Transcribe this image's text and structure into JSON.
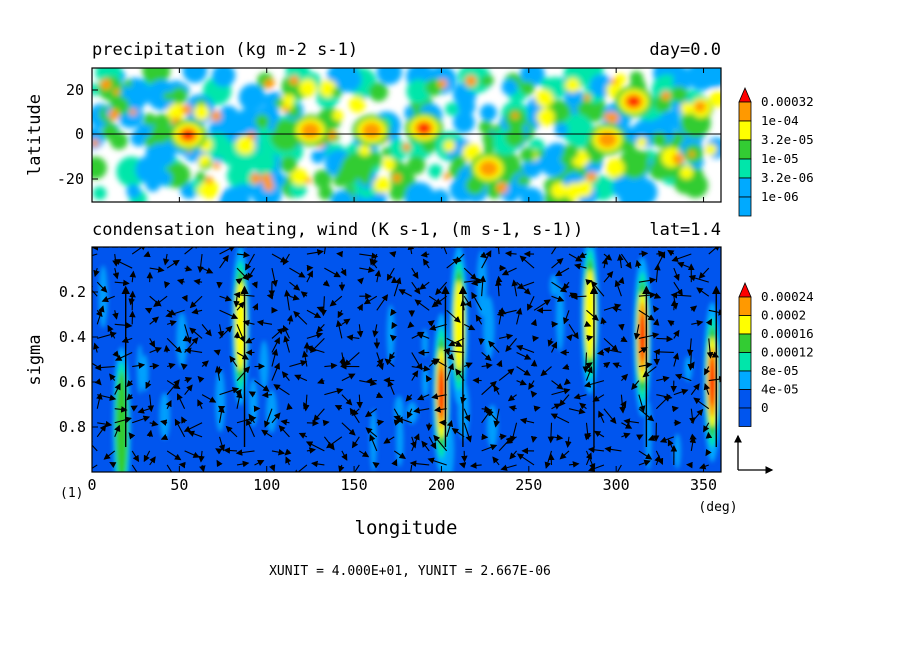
{
  "chart_data": [
    {
      "type": "heatmap",
      "title": "precipitation (kg m-2 s-1)",
      "time_label": "day=0.0",
      "xlabel": "",
      "ylabel": "latitude",
      "xlim": [
        0,
        360
      ],
      "ylim": [
        -30,
        30
      ],
      "x_ticks": [
        0,
        50,
        100,
        150,
        200,
        250,
        300,
        350
      ],
      "y_ticks": [
        "20",
        "0",
        "-20"
      ],
      "colorbar": {
        "levels": [
          "0.00032",
          "1e-04",
          "3.2e-05",
          "1e-05",
          "3.2e-06",
          "1e-06"
        ],
        "colors": [
          "#ff0000",
          "#ff9900",
          "#ffff00",
          "#33cc33",
          "#00e6aa",
          "#00aaff"
        ]
      },
      "reference_line": {
        "y": 0
      },
      "hotspots": [
        {
          "lon": 55,
          "lat": 0,
          "level": "0.00032"
        },
        {
          "lon": 125,
          "lat": 2,
          "level": "1e-04"
        },
        {
          "lon": 160,
          "lat": 2,
          "level": "1e-04"
        },
        {
          "lon": 190,
          "lat": 3,
          "level": "0.00032"
        },
        {
          "lon": 227,
          "lat": -15,
          "level": "1e-04"
        },
        {
          "lon": 295,
          "lat": -2,
          "level": "1e-04"
        },
        {
          "lon": 310,
          "lat": 15,
          "level": "0.00032"
        }
      ]
    },
    {
      "type": "heatmap",
      "title": "condensation heating, wind (K s-1, (m s-1, s-1))",
      "lat_label": "lat=1.4",
      "xlabel": "longitude",
      "x_unit": "(deg)",
      "ylabel": "sigma",
      "xlim": [
        0,
        360
      ],
      "ylim": [
        1.0,
        0.0
      ],
      "x_ticks": [
        "0",
        "50",
        "100",
        "150",
        "200",
        "250",
        "300",
        "350"
      ],
      "y_ticks": [
        "0.2",
        "0.4",
        "0.6",
        "0.8"
      ],
      "colorbar": {
        "levels": [
          "0.00024",
          "0.0002",
          "0.00016",
          "0.00012",
          "8e-05",
          "4e-05",
          "0"
        ],
        "colors": [
          "#ff0000",
          "#ff9900",
          "#ffff00",
          "#33cc33",
          "#00e6aa",
          "#00aaff",
          "#0055ee"
        ]
      },
      "heating_columns": [
        {
          "lon": 17,
          "sigma": 0.8,
          "level": "0.00012"
        },
        {
          "lon": 85,
          "sigma": 0.35,
          "level": "0.00016"
        },
        {
          "lon": 200,
          "sigma": 0.65,
          "level": "0.00024"
        },
        {
          "lon": 210,
          "sigma": 0.35,
          "level": "0.00016"
        },
        {
          "lon": 285,
          "sigma": 0.3,
          "level": "0.00016"
        },
        {
          "lon": 315,
          "sigma": 0.4,
          "level": "0.00024"
        },
        {
          "lon": 355,
          "sigma": 0.6,
          "level": "0.00024"
        }
      ],
      "vector_grid": {
        "nx": 36,
        "ny": 16
      }
    }
  ],
  "frame_label": "(1)",
  "footer": "XUNIT = 4.000E+01, YUNIT = 2.667E-06"
}
